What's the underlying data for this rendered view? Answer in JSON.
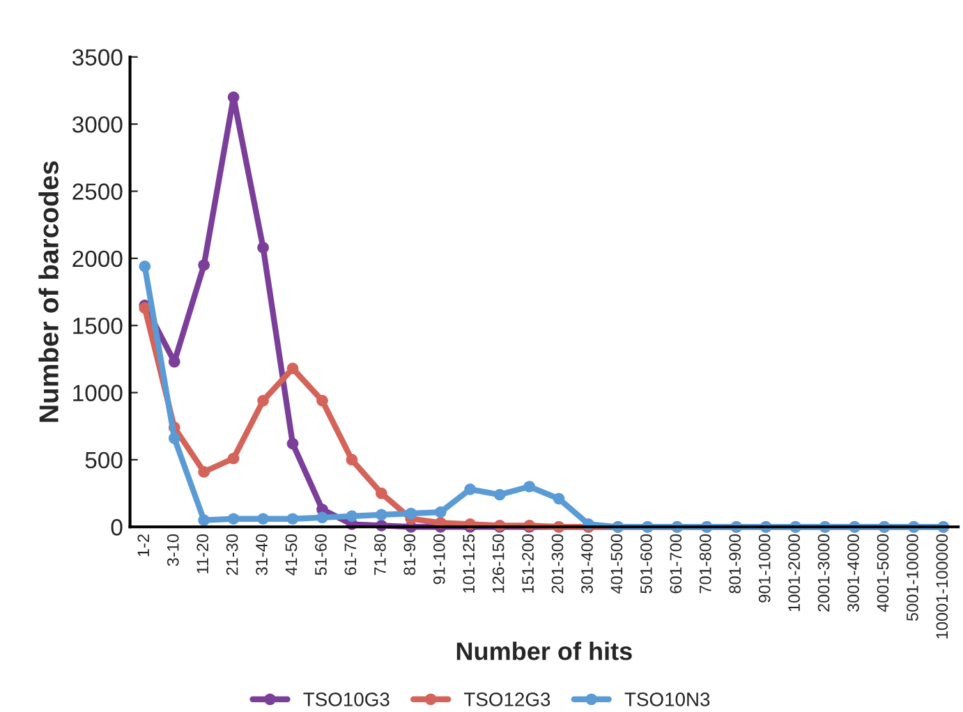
{
  "chart_data": {
    "type": "line",
    "xlabel": "Number of hits",
    "ylabel": "Number of barcodes",
    "categories": [
      "1-2",
      "3-10",
      "11-20",
      "21-30",
      "31-40",
      "41-50",
      "51-60",
      "61-70",
      "71-80",
      "81-90",
      "91-100",
      "101-125",
      "126-150",
      "151-200",
      "201-300",
      "301-400",
      "401-500",
      "501-600",
      "601-700",
      "701-800",
      "801-900",
      "901-1000",
      "1001-2000",
      "2001-3000",
      "3001-4000",
      "4001-5000",
      "5001-10000",
      "10001-100000"
    ],
    "series": [
      {
        "name": "TSO10G3",
        "color": "#7b3f9a",
        "values": [
          1650,
          1230,
          1950,
          3200,
          2080,
          620,
          130,
          20,
          10,
          0,
          0,
          0,
          0,
          0,
          0,
          0,
          0,
          0,
          0,
          0,
          0,
          0,
          0,
          0,
          0,
          0,
          0,
          0
        ]
      },
      {
        "name": "TSO12G3",
        "color": "#d4645a",
        "values": [
          1630,
          740,
          410,
          510,
          940,
          1180,
          940,
          500,
          250,
          60,
          30,
          20,
          10,
          10,
          0,
          0,
          0,
          null,
          null,
          null,
          null,
          null,
          null,
          null,
          null,
          null,
          null,
          null
        ]
      },
      {
        "name": "TSO10N3",
        "color": "#5b9bd5",
        "values": [
          1940,
          660,
          50,
          60,
          60,
          60,
          70,
          80,
          90,
          100,
          110,
          280,
          240,
          300,
          210,
          20,
          0,
          0,
          0,
          0,
          0,
          0,
          0,
          0,
          0,
          0,
          0,
          0
        ]
      }
    ],
    "ylim": [
      0,
      3500
    ],
    "yticks": [
      0,
      500,
      1000,
      1500,
      2000,
      2500,
      3000,
      3500
    ],
    "grid": false,
    "legend": "bottom",
    "marker": "circle",
    "line_style": "solid"
  }
}
